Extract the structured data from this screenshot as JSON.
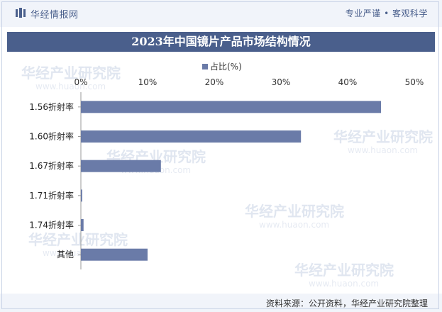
{
  "header": {
    "brand": "华经情报网",
    "tagline": "专业严谨 • 客观科学"
  },
  "title": "2023年中国镜片产品市场结构情况",
  "source": "资料来源：公开资料，华经产业研究院整理",
  "watermark": {
    "name": "华经产业研究院",
    "url": "www.huaon.com"
  },
  "colors": {
    "bar": "#6a7ba8",
    "title_bg": "#4a5f8c"
  },
  "chart_data": {
    "type": "bar",
    "orientation": "horizontal",
    "categories": [
      "1.56折射率",
      "1.60折射率",
      "1.67折射率",
      "1.71折射率",
      "1.74折射率",
      "其他"
    ],
    "series": [
      {
        "name": "占比(%)",
        "values": [
          45,
          33,
          12,
          0.2,
          0.4,
          10
        ]
      }
    ],
    "xlim": [
      0,
      50
    ],
    "xticks": [
      "0%",
      "10%",
      "20%",
      "30%",
      "40%",
      "50%"
    ],
    "legend_position": "top",
    "grid": false
  }
}
